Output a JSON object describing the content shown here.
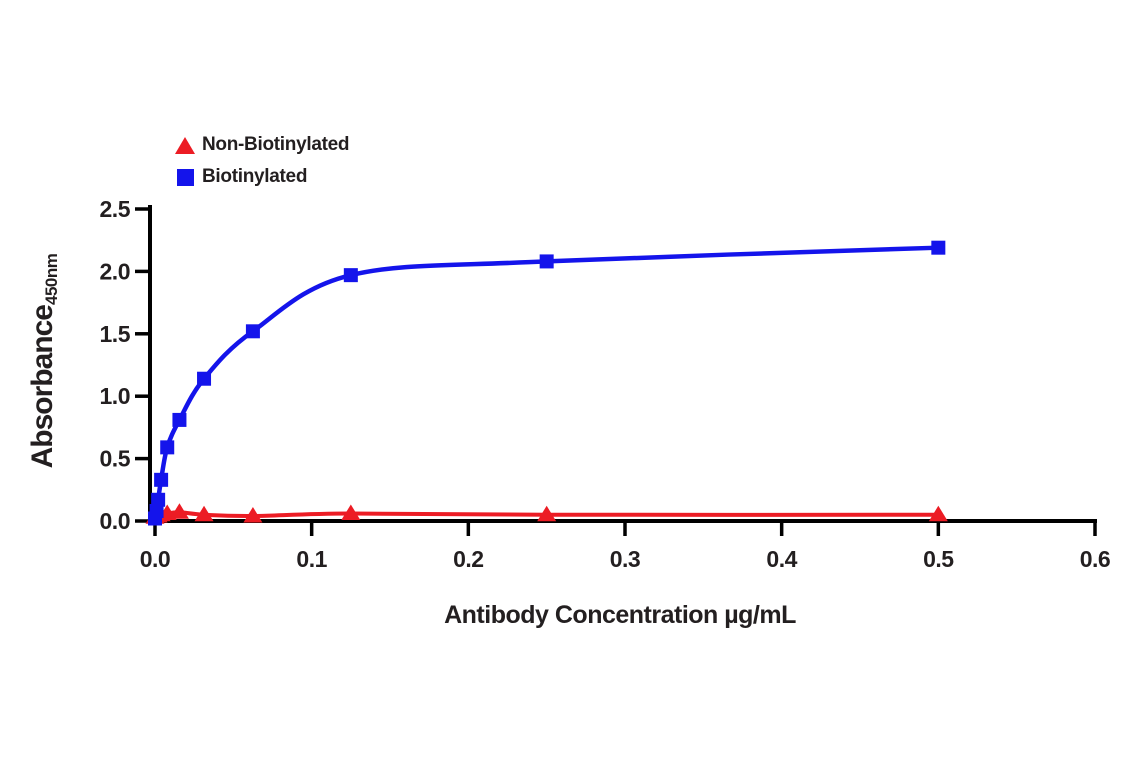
{
  "figure": {
    "background": "#ffffff",
    "legend": {
      "items": [
        {
          "label": "Non-Biotinylated",
          "marker": "triangle-icon",
          "color": "#ec1c24"
        },
        {
          "label": "Biotinylated",
          "marker": "square-icon",
          "color": "#1414eb"
        }
      ]
    },
    "x_axis": {
      "title": "Antibody Concentration µg/mL",
      "tick_labels": [
        "0.0",
        "0.1",
        "0.2",
        "0.3",
        "0.4",
        "0.5",
        "0.6"
      ]
    },
    "y_axis": {
      "title": "Absorbance",
      "title_subscript": "450nm",
      "tick_labels": [
        "0.0",
        "0.5",
        "1.0",
        "1.5",
        "2.0",
        "2.5"
      ]
    }
  },
  "chart_data": {
    "type": "line",
    "title": "",
    "xlabel": "Antibody Concentration µg/mL",
    "ylabel": "Absorbance 450nm",
    "xlim": [
      0,
      0.6
    ],
    "ylim": [
      0,
      2.5
    ],
    "x_ticks": [
      0,
      0.1,
      0.2,
      0.3,
      0.4,
      0.5,
      0.6
    ],
    "y_ticks": [
      0,
      0.5,
      1,
      1.5,
      2,
      2.5
    ],
    "grid": false,
    "legend_position": "top-left",
    "axis_color": "#000000",
    "series": [
      {
        "name": "Non-Biotinylated",
        "color": "#ec1c24",
        "marker": "triangle",
        "line_width": 4,
        "x": [
          0,
          0.001,
          0.002,
          0.0039,
          0.0078,
          0.0156,
          0.0313,
          0.0625,
          0.125,
          0.25,
          0.5
        ],
        "y": [
          0.03,
          0.04,
          0.04,
          0.05,
          0.06,
          0.07,
          0.05,
          0.04,
          0.06,
          0.05,
          0.05
        ]
      },
      {
        "name": "Biotinylated",
        "color": "#1414eb",
        "marker": "square",
        "line_width": 4.5,
        "x": [
          0,
          0.001,
          0.002,
          0.0039,
          0.0078,
          0.0156,
          0.0313,
          0.0625,
          0.125,
          0.25,
          0.5
        ],
        "y": [
          0.02,
          0.08,
          0.17,
          0.33,
          0.59,
          0.81,
          1.14,
          1.52,
          1.97,
          2.08,
          2.19
        ]
      }
    ]
  }
}
